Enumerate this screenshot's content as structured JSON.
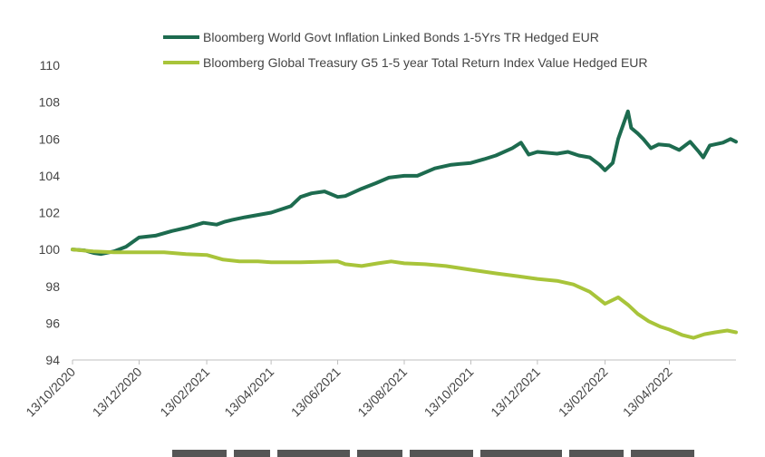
{
  "chart_data": {
    "type": "line",
    "title": "",
    "xlabel": "",
    "ylabel": "",
    "ylim": [
      94,
      110
    ],
    "yticks": [
      94,
      96,
      98,
      100,
      102,
      104,
      106,
      108,
      110
    ],
    "xlim": [
      "2020-10-13",
      "2022-06-13"
    ],
    "xtick_labels": [
      "13/10/2020",
      "13/12/2020",
      "13/02/2021",
      "13/04/2021",
      "13/06/2021",
      "13/08/2021",
      "13/10/2021",
      "13/12/2021",
      "13/02/2022",
      "13/04/2022"
    ],
    "xtick_dates": [
      "2020-10-13",
      "2020-12-13",
      "2021-02-13",
      "2021-04-13",
      "2021-06-13",
      "2021-08-13",
      "2021-10-13",
      "2021-12-13",
      "2022-02-13",
      "2022-04-13"
    ],
    "grid": false,
    "legend_position": "top",
    "series": [
      {
        "name": "Bloomberg World Govt Inflation Linked Bonds 1-5Yrs TR Hedged EUR",
        "color": "#1d6b4f",
        "points": [
          [
            "2020-10-13",
            100.0
          ],
          [
            "2020-10-24",
            99.95
          ],
          [
            "2020-11-02",
            99.8
          ],
          [
            "2020-11-08",
            99.75
          ],
          [
            "2020-11-20",
            99.9
          ],
          [
            "2020-12-01",
            100.15
          ],
          [
            "2020-12-13",
            100.65
          ],
          [
            "2020-12-28",
            100.75
          ],
          [
            "2021-01-12",
            101.0
          ],
          [
            "2021-01-27",
            101.2
          ],
          [
            "2021-02-10",
            101.45
          ],
          [
            "2021-02-22",
            101.35
          ],
          [
            "2021-03-01",
            101.5
          ],
          [
            "2021-03-08",
            101.6
          ],
          [
            "2021-03-20",
            101.75
          ],
          [
            "2021-04-13",
            102.0
          ],
          [
            "2021-05-01",
            102.35
          ],
          [
            "2021-05-10",
            102.85
          ],
          [
            "2021-05-20",
            103.05
          ],
          [
            "2021-06-01",
            103.15
          ],
          [
            "2021-06-13",
            102.85
          ],
          [
            "2021-06-20",
            102.9
          ],
          [
            "2021-07-05",
            103.3
          ],
          [
            "2021-07-18",
            103.6
          ],
          [
            "2021-07-30",
            103.9
          ],
          [
            "2021-08-13",
            104.0
          ],
          [
            "2021-08-25",
            104.0
          ],
          [
            "2021-09-10",
            104.4
          ],
          [
            "2021-09-25",
            104.6
          ],
          [
            "2021-10-13",
            104.7
          ],
          [
            "2021-10-25",
            104.9
          ],
          [
            "2021-11-05",
            105.1
          ],
          [
            "2021-11-20",
            105.5
          ],
          [
            "2021-11-28",
            105.8
          ],
          [
            "2021-12-05",
            105.15
          ],
          [
            "2021-12-13",
            105.3
          ],
          [
            "2021-12-31",
            105.2
          ],
          [
            "2022-01-10",
            105.3
          ],
          [
            "2022-01-20",
            105.1
          ],
          [
            "2022-01-30",
            105.0
          ],
          [
            "2022-02-08",
            104.6
          ],
          [
            "2022-02-13",
            104.3
          ],
          [
            "2022-02-20",
            104.7
          ],
          [
            "2022-02-25",
            106.0
          ],
          [
            "2022-02-28",
            106.5
          ],
          [
            "2022-03-03",
            107.0
          ],
          [
            "2022-03-06",
            107.5
          ],
          [
            "2022-03-09",
            106.6
          ],
          [
            "2022-03-15",
            106.3
          ],
          [
            "2022-03-20",
            106.0
          ],
          [
            "2022-03-27",
            105.5
          ],
          [
            "2022-04-03",
            105.7
          ],
          [
            "2022-04-13",
            105.65
          ],
          [
            "2022-04-22",
            105.4
          ],
          [
            "2022-05-02",
            105.85
          ],
          [
            "2022-05-10",
            105.3
          ],
          [
            "2022-05-14",
            105.0
          ],
          [
            "2022-05-20",
            105.65
          ],
          [
            "2022-06-01",
            105.8
          ],
          [
            "2022-06-08",
            106.0
          ],
          [
            "2022-06-13",
            105.85
          ]
        ]
      },
      {
        "name": "Bloomberg Global Treasury G5 1-5 year Total Return Index Value Hedged EUR",
        "color": "#a8c43a",
        "points": [
          [
            "2020-10-13",
            100.0
          ],
          [
            "2020-11-01",
            99.9
          ],
          [
            "2020-11-20",
            99.85
          ],
          [
            "2020-12-13",
            99.85
          ],
          [
            "2021-01-05",
            99.85
          ],
          [
            "2021-01-25",
            99.75
          ],
          [
            "2021-02-13",
            99.7
          ],
          [
            "2021-02-28",
            99.45
          ],
          [
            "2021-03-15",
            99.35
          ],
          [
            "2021-04-01",
            99.35
          ],
          [
            "2021-04-13",
            99.3
          ],
          [
            "2021-05-10",
            99.3
          ],
          [
            "2021-06-13",
            99.35
          ],
          [
            "2021-06-20",
            99.2
          ],
          [
            "2021-07-05",
            99.1
          ],
          [
            "2021-07-20",
            99.25
          ],
          [
            "2021-08-01",
            99.35
          ],
          [
            "2021-08-13",
            99.25
          ],
          [
            "2021-09-01",
            99.2
          ],
          [
            "2021-09-20",
            99.1
          ],
          [
            "2021-10-13",
            98.9
          ],
          [
            "2021-11-05",
            98.7
          ],
          [
            "2021-11-25",
            98.55
          ],
          [
            "2021-12-13",
            98.4
          ],
          [
            "2021-12-31",
            98.3
          ],
          [
            "2022-01-15",
            98.1
          ],
          [
            "2022-01-30",
            97.7
          ],
          [
            "2022-02-13",
            97.05
          ],
          [
            "2022-02-25",
            97.4
          ],
          [
            "2022-03-06",
            97.0
          ],
          [
            "2022-03-15",
            96.5
          ],
          [
            "2022-03-25",
            96.1
          ],
          [
            "2022-04-05",
            95.8
          ],
          [
            "2022-04-13",
            95.65
          ],
          [
            "2022-04-25",
            95.35
          ],
          [
            "2022-05-05",
            95.2
          ],
          [
            "2022-05-15",
            95.4
          ],
          [
            "2022-05-25",
            95.5
          ],
          [
            "2022-06-05",
            95.6
          ],
          [
            "2022-06-13",
            95.5
          ]
        ]
      }
    ]
  }
}
